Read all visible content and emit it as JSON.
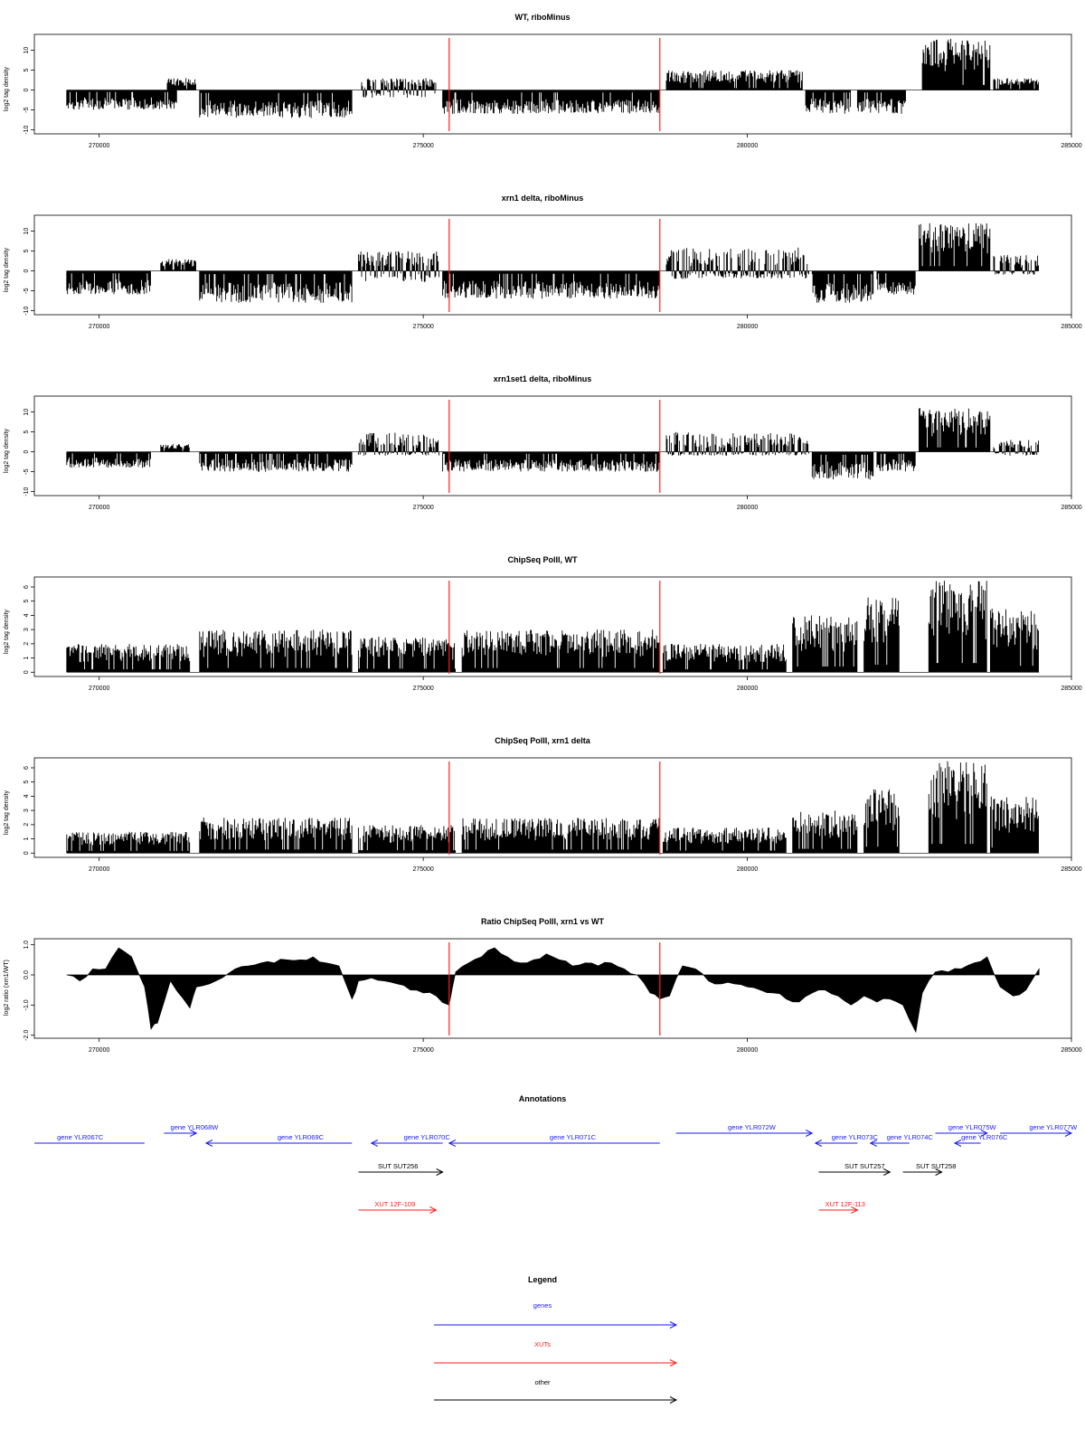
{
  "chart_data": [
    {
      "id": "p1",
      "type": "bar",
      "title": "WT, riboMinus",
      "ylabel": "log2 tag density",
      "ylim": [
        -11,
        14
      ],
      "yticks": [
        -10,
        -5,
        0,
        5,
        10
      ],
      "xlim": [
        269000,
        285000
      ],
      "xticks": [
        270000,
        275000,
        280000,
        285000
      ],
      "grid": false,
      "markers": [
        275400,
        278650
      ],
      "segments": [
        {
          "x": [
            269500,
            271200
          ],
          "range": [
            -5,
            0
          ]
        },
        {
          "x": [
            271050,
            271500
          ],
          "range": [
            0,
            3
          ]
        },
        {
          "x": [
            271550,
            273900
          ],
          "range": [
            -7,
            0
          ]
        },
        {
          "x": [
            274050,
            275200
          ],
          "range": [
            -2,
            3
          ]
        },
        {
          "x": [
            275300,
            278650
          ],
          "range": [
            -6,
            0
          ]
        },
        {
          "x": [
            278750,
            280850
          ],
          "range": [
            0,
            5
          ]
        },
        {
          "x": [
            280900,
            281600
          ],
          "range": [
            -6,
            0
          ]
        },
        {
          "x": [
            281700,
            282450
          ],
          "range": [
            -6,
            0
          ]
        },
        {
          "x": [
            282700,
            283750
          ],
          "range": [
            0,
            13
          ]
        },
        {
          "x": [
            283800,
            284500
          ],
          "range": [
            0,
            3
          ]
        }
      ]
    },
    {
      "id": "p2",
      "type": "bar",
      "title": "xrn1 delta, riboMinus",
      "ylabel": "log2 tag density",
      "ylim": [
        -11,
        14
      ],
      "yticks": [
        -10,
        -5,
        0,
        5,
        10
      ],
      "xlim": [
        269000,
        285000
      ],
      "xticks": [
        270000,
        275000,
        280000,
        285000
      ],
      "grid": false,
      "markers": [
        275400,
        278650
      ],
      "segments": [
        {
          "x": [
            269500,
            270800
          ],
          "range": [
            -6,
            0
          ]
        },
        {
          "x": [
            270950,
            271500
          ],
          "range": [
            0,
            3
          ]
        },
        {
          "x": [
            271550,
            273900
          ],
          "range": [
            -8,
            0
          ]
        },
        {
          "x": [
            274000,
            275250
          ],
          "range": [
            -3,
            5
          ]
        },
        {
          "x": [
            275300,
            278650
          ],
          "range": [
            -7,
            0
          ]
        },
        {
          "x": [
            278750,
            280950
          ],
          "range": [
            -2,
            6
          ]
        },
        {
          "x": [
            281000,
            281950
          ],
          "range": [
            -8,
            0
          ]
        },
        {
          "x": [
            282000,
            282600
          ],
          "range": [
            -6,
            0
          ]
        },
        {
          "x": [
            282650,
            283750
          ],
          "range": [
            0,
            12
          ]
        },
        {
          "x": [
            283800,
            284500
          ],
          "range": [
            -1,
            4
          ]
        }
      ]
    },
    {
      "id": "p3",
      "type": "bar",
      "title": "xrn1set1 delta, riboMinus",
      "ylabel": "log2 tag density",
      "ylim": [
        -11,
        14
      ],
      "yticks": [
        -10,
        -5,
        0,
        5,
        10
      ],
      "xlim": [
        269000,
        285000
      ],
      "xticks": [
        270000,
        275000,
        280000,
        285000
      ],
      "grid": false,
      "markers": [
        275400,
        278650
      ],
      "segments": [
        {
          "x": [
            269500,
            270800
          ],
          "range": [
            -4,
            0
          ]
        },
        {
          "x": [
            270950,
            271400
          ],
          "range": [
            0,
            2
          ]
        },
        {
          "x": [
            271550,
            273900
          ],
          "range": [
            -5,
            0
          ]
        },
        {
          "x": [
            274000,
            275250
          ],
          "range": [
            -1,
            5
          ]
        },
        {
          "x": [
            275300,
            278650
          ],
          "range": [
            -5,
            0
          ]
        },
        {
          "x": [
            278750,
            280950
          ],
          "range": [
            -1,
            5
          ]
        },
        {
          "x": [
            281000,
            281950
          ],
          "range": [
            -7,
            0
          ]
        },
        {
          "x": [
            282000,
            282600
          ],
          "range": [
            -5,
            0
          ]
        },
        {
          "x": [
            282650,
            283750
          ],
          "range": [
            0,
            11
          ]
        },
        {
          "x": [
            283800,
            284500
          ],
          "range": [
            -1,
            3
          ]
        }
      ]
    },
    {
      "id": "p4",
      "type": "bar",
      "title": "ChipSeq PolII, WT",
      "ylabel": "log2 tag density",
      "ylim": [
        -0.3,
        6.7
      ],
      "yticks": [
        0,
        1,
        2,
        3,
        4,
        5,
        6
      ],
      "xlim": [
        269000,
        285000
      ],
      "xticks": [
        270000,
        275000,
        280000,
        285000
      ],
      "grid": false,
      "markers": [
        275400,
        278650
      ],
      "segments": [
        {
          "x": [
            269500,
            271400
          ],
          "range": [
            0,
            2
          ]
        },
        {
          "x": [
            271550,
            273900
          ],
          "range": [
            0,
            3
          ]
        },
        {
          "x": [
            274000,
            275500
          ],
          "range": [
            0,
            2.5
          ]
        },
        {
          "x": [
            275600,
            278650
          ],
          "range": [
            0,
            3
          ]
        },
        {
          "x": [
            278700,
            280600
          ],
          "range": [
            0,
            2
          ]
        },
        {
          "x": [
            280700,
            281700
          ],
          "range": [
            0,
            4
          ]
        },
        {
          "x": [
            281800,
            282350
          ],
          "range": [
            0,
            5.3
          ]
        },
        {
          "x": [
            282800,
            283700
          ],
          "range": [
            0,
            6.5
          ]
        },
        {
          "x": [
            283750,
            284500
          ],
          "range": [
            0,
            4.5
          ]
        }
      ]
    },
    {
      "id": "p5",
      "type": "bar",
      "title": "ChipSeq PolII, xrn1 delta",
      "ylabel": "log2 tag density",
      "ylim": [
        -0.3,
        6.7
      ],
      "yticks": [
        0,
        1,
        2,
        3,
        4,
        5,
        6
      ],
      "xlim": [
        269000,
        285000
      ],
      "xticks": [
        270000,
        275000,
        280000,
        285000
      ],
      "grid": false,
      "markers": [
        275400,
        278650
      ],
      "segments": [
        {
          "x": [
            269500,
            271400
          ],
          "range": [
            0,
            1.5
          ]
        },
        {
          "x": [
            271550,
            273900
          ],
          "range": [
            0,
            2.5
          ]
        },
        {
          "x": [
            274000,
            275500
          ],
          "range": [
            0,
            2
          ]
        },
        {
          "x": [
            275600,
            278650
          ],
          "range": [
            0,
            2.5
          ]
        },
        {
          "x": [
            278700,
            280600
          ],
          "range": [
            0,
            1.8
          ]
        },
        {
          "x": [
            280700,
            281700
          ],
          "range": [
            0,
            3
          ]
        },
        {
          "x": [
            281800,
            282350
          ],
          "range": [
            0,
            4.5
          ]
        },
        {
          "x": [
            282800,
            283700
          ],
          "range": [
            0,
            6.5
          ]
        },
        {
          "x": [
            283750,
            284500
          ],
          "range": [
            0,
            4
          ]
        }
      ]
    },
    {
      "id": "p6",
      "type": "area",
      "title": "Ratio ChipSeq PolII, xrn1 vs WT",
      "ylabel": "log2 ratio (xrn1/WT)",
      "ylim": [
        -2.1,
        1.2
      ],
      "yticks": [
        -2.0,
        -1.0,
        0.0,
        1.0
      ],
      "xlim": [
        269000,
        285000
      ],
      "xticks": [
        270000,
        275000,
        280000,
        285000
      ],
      "grid": false,
      "markers": [
        275400,
        278650
      ],
      "x": [
        269500,
        269700,
        269900,
        270100,
        270300,
        270500,
        270700,
        270800,
        270900,
        271100,
        271300,
        271400,
        271500,
        271700,
        271900,
        272100,
        272300,
        272500,
        272700,
        272900,
        273100,
        273300,
        273500,
        273700,
        273900,
        274000,
        274200,
        274400,
        274600,
        274800,
        275000,
        275200,
        275400,
        275500,
        275700,
        275900,
        276100,
        276300,
        276500,
        276700,
        276900,
        277100,
        277300,
        277500,
        277700,
        277900,
        278100,
        278300,
        278500,
        278650,
        278800,
        279000,
        279200,
        279400,
        279600,
        279800,
        280000,
        280200,
        280400,
        280600,
        280800,
        281000,
        281200,
        281400,
        281600,
        281800,
        282000,
        282200,
        282400,
        282600,
        282700,
        282900,
        283100,
        283300,
        283500,
        283700,
        283900,
        284100,
        284300,
        284500
      ],
      "y": [
        0.0,
        -0.2,
        0.2,
        0.2,
        0.9,
        0.6,
        -0.4,
        -1.8,
        -1.6,
        -0.2,
        -0.8,
        -1.1,
        -0.4,
        -0.3,
        -0.1,
        0.2,
        0.3,
        0.4,
        0.4,
        0.5,
        0.5,
        0.6,
        0.4,
        0.3,
        -0.8,
        -0.2,
        -0.1,
        -0.2,
        -0.3,
        -0.5,
        -0.6,
        -0.7,
        -1.0,
        0.1,
        0.4,
        0.6,
        0.9,
        0.6,
        0.4,
        0.5,
        0.7,
        0.5,
        0.3,
        0.4,
        0.3,
        0.4,
        0.2,
        0.0,
        -0.6,
        -0.8,
        -0.7,
        0.3,
        0.2,
        -0.2,
        -0.3,
        -0.3,
        -0.4,
        -0.5,
        -0.6,
        -0.8,
        -0.9,
        -0.6,
        -0.5,
        -0.7,
        -1.0,
        -0.7,
        -0.9,
        -0.8,
        -1.0,
        -1.9,
        -0.6,
        0.1,
        0.1,
        0.2,
        0.4,
        0.6,
        -0.4,
        -0.7,
        -0.5,
        0.2
      ]
    }
  ],
  "annotations": {
    "title": "Annotations",
    "xlim": [
      269000,
      285000
    ],
    "items": [
      {
        "label": "gene YLR067C",
        "kind": "gene",
        "color": "#1a1aff",
        "start": 269000,
        "end": 270700,
        "dir": "none",
        "row": 2,
        "label_x": 269350
      },
      {
        "label": "gene YLR068W",
        "kind": "gene",
        "color": "#1a1aff",
        "start": 271000,
        "end": 271500,
        "dir": "right",
        "row": 1,
        "label_x": 271100
      },
      {
        "label": "gene YLR069C",
        "kind": "gene",
        "color": "#1a1aff",
        "start": 271650,
        "end": 273900,
        "dir": "left",
        "row": 2,
        "label_x": 272750
      },
      {
        "label": "gene YLR070C",
        "kind": "gene",
        "color": "#1a1aff",
        "start": 274200,
        "end": 275300,
        "dir": "left",
        "row": 2,
        "label_x": 274700
      },
      {
        "label": "gene YLR071C",
        "kind": "gene",
        "color": "#1a1aff",
        "start": 275400,
        "end": 278650,
        "dir": "left",
        "row": 2,
        "label_x": 276950
      },
      {
        "label": "gene YLR072W",
        "kind": "gene",
        "color": "#1a1aff",
        "start": 278900,
        "end": 281000,
        "dir": "right",
        "row": 1,
        "label_x": 279700
      },
      {
        "label": "gene YLR073C",
        "kind": "gene",
        "color": "#1a1aff",
        "start": 281050,
        "end": 281700,
        "dir": "left",
        "row": 2,
        "label_x": 281300
      },
      {
        "label": "gene YLR074C",
        "kind": "gene",
        "color": "#1a1aff",
        "start": 281900,
        "end": 282500,
        "dir": "left",
        "row": 2,
        "label_x": 282150
      },
      {
        "label": "gene YLR075W",
        "kind": "gene",
        "color": "#1a1aff",
        "start": 282900,
        "end": 283700,
        "dir": "right",
        "row": 1,
        "label_x": 283100
      },
      {
        "label": "gene YLR076C",
        "kind": "gene",
        "color": "#1a1aff",
        "start": 283200,
        "end": 283600,
        "dir": "left",
        "row": 2,
        "label_x": 283300
      },
      {
        "label": "gene YLR077W",
        "kind": "gene",
        "color": "#1a1aff",
        "start": 283900,
        "end": 285000,
        "dir": "right",
        "row": 1,
        "label_x": 284350
      },
      {
        "label": "SUT SUT256",
        "kind": "other",
        "color": "#000000",
        "start": 274000,
        "end": 275300,
        "dir": "right",
        "row": 3,
        "label_x": 274300
      },
      {
        "label": "SUT SUT257",
        "kind": "other",
        "color": "#000000",
        "start": 281100,
        "end": 282200,
        "dir": "right",
        "row": 3,
        "label_x": 281500
      },
      {
        "label": "SUT SUT258",
        "kind": "other",
        "color": "#000000",
        "start": 282400,
        "end": 283000,
        "dir": "right",
        "row": 3,
        "label_x": 282600
      },
      {
        "label": "XUT 12F-109",
        "kind": "xut",
        "color": "#ff1a1a",
        "start": 274000,
        "end": 275200,
        "dir": "right",
        "row": 4,
        "label_x": 274250
      },
      {
        "label": "XUT 12F-113",
        "kind": "xut",
        "color": "#ff1a1a",
        "start": 281100,
        "end": 281700,
        "dir": "right",
        "row": 4,
        "label_x": 281200
      }
    ]
  },
  "legend": {
    "title": "Legend",
    "entries": [
      {
        "label": "genes",
        "color": "#1a1aff"
      },
      {
        "label": "XUTs",
        "color": "#ff1a1a"
      },
      {
        "label": "other",
        "color": "#000000"
      }
    ]
  }
}
